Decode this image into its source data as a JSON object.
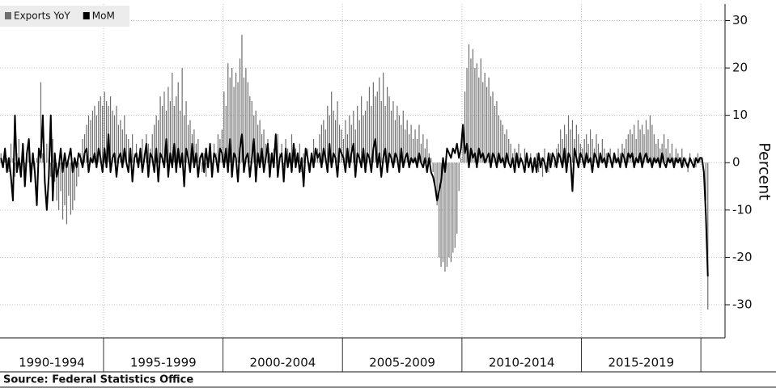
{
  "chart_data": {
    "type": "bar_line",
    "legend": "top-left",
    "source": "Source: Federal Statistics Office",
    "y_label": "Percent",
    "categories": [
      "1990-1994",
      "1995-1999",
      "2000-2004",
      "2005-2009",
      "2010-2014",
      "2015-2019",
      null
    ],
    "ylim": [
      -37,
      33.5
    ],
    "yticks": [
      -30,
      -20,
      -10,
      0,
      10,
      20,
      30
    ],
    "grid": true,
    "series": [
      {
        "name": "Exports YoY",
        "color": "#6e6e6e",
        "type": "bar",
        "values": [
          [
            2,
            -1,
            3,
            1,
            -2,
            4,
            1,
            -3,
            2,
            5,
            -1,
            3,
            -2,
            1,
            4,
            -1,
            2,
            -3,
            1,
            3,
            17,
            2,
            -2,
            4,
            1,
            -3,
            5,
            -4,
            -8,
            -10,
            -6,
            -12,
            -9,
            -13,
            -7,
            -11,
            -10,
            -8,
            -5,
            -3,
            2,
            5,
            6,
            8,
            10,
            9,
            11,
            12,
            10,
            13,
            14,
            12
          ],
          [
            15,
            13,
            12,
            14,
            11,
            10,
            12,
            8,
            9,
            7,
            10,
            6,
            5,
            3,
            6,
            2,
            4,
            1,
            3,
            5,
            2,
            6,
            4,
            3,
            6,
            8,
            10,
            9,
            14,
            12,
            15,
            11,
            16,
            13,
            19,
            12,
            14,
            17,
            11,
            20,
            10,
            13,
            8,
            9,
            6,
            7,
            4,
            5,
            1,
            -2,
            2,
            -3,
            0,
            3,
            -1,
            4,
            2,
            6,
            5,
            7
          ],
          [
            15,
            12,
            21,
            18,
            20,
            16,
            19,
            17,
            22,
            27,
            18,
            20,
            17,
            14,
            13,
            10,
            11,
            8,
            9,
            6,
            7,
            4,
            5,
            2,
            1,
            3,
            0,
            6,
            2,
            4,
            -1,
            5,
            3,
            2,
            6,
            4,
            3,
            1,
            4,
            -2,
            2,
            0,
            3,
            -1,
            2,
            5,
            1,
            3,
            6,
            8,
            9,
            7,
            12,
            10,
            15,
            11,
            9,
            13,
            8,
            7
          ],
          [
            5,
            9,
            6,
            10,
            8,
            11,
            7,
            12,
            9,
            14,
            10,
            11,
            13,
            16,
            12,
            17,
            14,
            15,
            18,
            13,
            19,
            12,
            16,
            14,
            11,
            13,
            9,
            12,
            10,
            8,
            11,
            7,
            9,
            6,
            8,
            5,
            7,
            5,
            8,
            4,
            6,
            3,
            5,
            2,
            1,
            -2,
            -5,
            -9,
            -20,
            -22,
            -21,
            -23,
            -22,
            -20,
            -21,
            -19,
            -18,
            -15,
            -6,
            1
          ],
          [
            8,
            15,
            20,
            25,
            22,
            24,
            20,
            21,
            18,
            22,
            17,
            19,
            16,
            18,
            14,
            15,
            12,
            13,
            10,
            9,
            8,
            6,
            7,
            5,
            4,
            2,
            3,
            1,
            4,
            2,
            0,
            3,
            1,
            -1,
            2,
            0,
            -1,
            2,
            -2,
            1,
            -3,
            3,
            0,
            -2,
            2,
            1,
            -1,
            3,
            4,
            7,
            5,
            8,
            6,
            10,
            7,
            9,
            5,
            8,
            6,
            4
          ],
          [
            3,
            5,
            6,
            4,
            7,
            5,
            3,
            6,
            4,
            2,
            5,
            3,
            2,
            1,
            3,
            0,
            2,
            1,
            3,
            2,
            4,
            3,
            5,
            6,
            7,
            6,
            8,
            5,
            9,
            7,
            8,
            6,
            9,
            7,
            10,
            8,
            6,
            4,
            5,
            3,
            4,
            6,
            3,
            5,
            2,
            4,
            1,
            3,
            2,
            0,
            3,
            -1,
            1,
            -2,
            2,
            0,
            1,
            -1,
            2,
            1
          ],
          [
            1,
            0,
            -8,
            -31
          ]
        ]
      },
      {
        "name": "MoM",
        "color": "#000000",
        "type": "line",
        "values": [
          [
            1,
            -1,
            3,
            -2,
            1,
            -3,
            -8,
            10,
            -2,
            1,
            -3,
            4,
            -5,
            2,
            5,
            -4,
            2,
            -2,
            -9,
            3,
            1,
            10,
            -4,
            -10,
            -3,
            10,
            -8,
            2,
            -3,
            -1,
            3,
            -2,
            2,
            -1,
            1,
            3,
            -2,
            1,
            -1,
            2,
            1,
            -1,
            2,
            3,
            -2,
            1,
            0,
            2,
            -1,
            3,
            1,
            -2
          ],
          [
            3,
            -1,
            6,
            -2,
            1,
            2,
            -3,
            1,
            2,
            -1,
            3,
            0,
            -2,
            3,
            -4,
            1,
            2,
            -1,
            3,
            -2,
            1,
            4,
            -3,
            2,
            1,
            -2,
            3,
            -4,
            2,
            1,
            -1,
            5,
            -3,
            2,
            -1,
            4,
            -2,
            3,
            -1,
            2,
            -5,
            3,
            1,
            -2,
            4,
            -1,
            2,
            -3,
            1,
            2,
            -2,
            3,
            -1,
            4,
            -3,
            2,
            1,
            -2,
            3,
            2
          ],
          [
            -1,
            3,
            -2,
            5,
            -3,
            2,
            1,
            -4,
            3,
            6,
            -2,
            1,
            2,
            -3,
            1,
            5,
            -4,
            2,
            -1,
            3,
            -2,
            1,
            4,
            -3,
            2,
            -1,
            6,
            -3,
            1,
            2,
            -4,
            3,
            -1,
            2,
            -2,
            4,
            -1,
            2,
            -2,
            1,
            -5,
            3,
            1,
            -2,
            2,
            -1,
            3,
            1,
            2,
            -1,
            3,
            1,
            -2,
            4,
            -1,
            2,
            1,
            -3,
            3,
            2
          ],
          [
            1,
            -2,
            3,
            -1,
            2,
            4,
            -3,
            2,
            1,
            -1,
            3,
            -2,
            2,
            1,
            -2,
            3,
            5,
            -1,
            2,
            -3,
            1,
            3,
            -2,
            2,
            1,
            -1,
            2,
            1,
            -2,
            3,
            -1,
            1,
            2,
            -1,
            1,
            0,
            1,
            -1,
            2,
            0,
            -1,
            1,
            -2,
            1,
            -2,
            -3,
            -5,
            -8,
            -6,
            -4,
            1,
            -2,
            3,
            2,
            1,
            3,
            2,
            4,
            1,
            3
          ],
          [
            8,
            2,
            4,
            -1,
            3,
            1,
            2,
            -1,
            3,
            1,
            2,
            0,
            1,
            2,
            -1,
            2,
            1,
            -1,
            2,
            0,
            1,
            -1,
            2,
            0,
            -1,
            1,
            -2,
            2,
            -1,
            1,
            0,
            -2,
            2,
            -1,
            1,
            -2,
            1,
            -2,
            2,
            -1,
            1,
            0,
            -2,
            2,
            -1,
            2,
            1,
            -1,
            2,
            1,
            -1,
            3,
            -2,
            2,
            1,
            -6,
            3,
            1,
            -1,
            2
          ],
          [
            1,
            -1,
            2,
            0,
            1,
            -2,
            2,
            1,
            -1,
            2,
            0,
            1,
            -1,
            2,
            1,
            -1,
            2,
            0,
            1,
            -1,
            2,
            1,
            -1,
            2,
            1,
            2,
            -1,
            1,
            0,
            2,
            -1,
            1,
            2,
            0,
            1,
            -1,
            1,
            0,
            1,
            -1,
            2,
            0,
            -1,
            1,
            0,
            1,
            -1,
            1,
            0,
            1,
            -1,
            1,
            0,
            -1,
            1,
            0,
            -1,
            1,
            0,
            1
          ],
          [
            1,
            -2,
            -11,
            -24
          ]
        ]
      }
    ]
  }
}
